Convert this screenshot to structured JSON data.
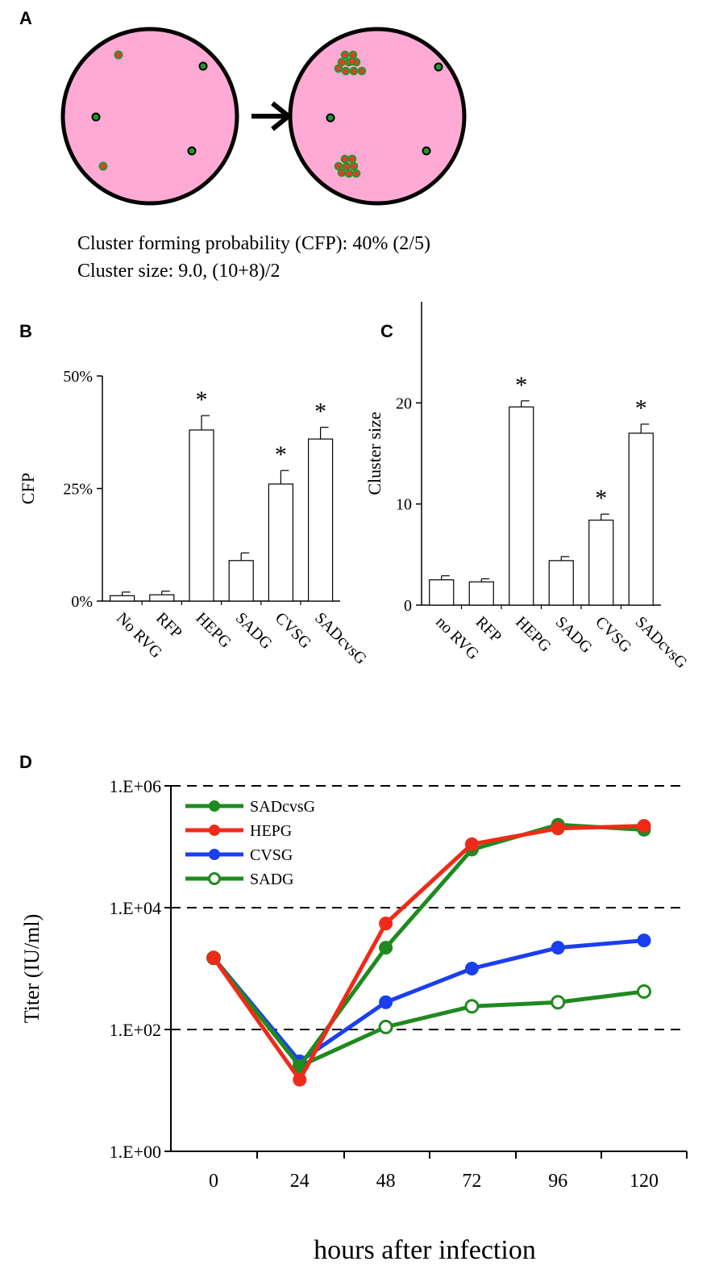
{
  "panel_a": {
    "letter": "A",
    "caption_line1": "Cluster forming probability (CFP): 40% (2/5)",
    "caption_line2": "Cluster size: 9.0, (10+8)/2",
    "colors": {
      "dish": "#ffaad4",
      "infected": "#e83a2a",
      "cell": "#1f9a2a"
    }
  },
  "chart_data": [
    {
      "panel": "B",
      "type": "bar",
      "title": "",
      "xlabel": "",
      "ylabel": "CFP",
      "ylim": [
        0,
        50
      ],
      "yticks": [
        0,
        25,
        50
      ],
      "ytick_labels": [
        "0%",
        "25%",
        "50%"
      ],
      "categories": [
        "No RVG",
        "RFP",
        "HEPG",
        "SADG",
        "CVSG",
        "SADcvsG"
      ],
      "values": [
        1.2,
        1.4,
        38,
        9,
        26,
        36
      ],
      "errors": [
        0.8,
        0.8,
        3.2,
        1.7,
        3.0,
        2.6
      ],
      "significance": [
        "",
        "",
        "*",
        "",
        "*",
        "*"
      ]
    },
    {
      "panel": "C",
      "type": "bar",
      "title": "",
      "xlabel": "",
      "ylabel": "Cluster size",
      "ylim": [
        0,
        30
      ],
      "yticks": [
        0,
        10,
        20
      ],
      "ytick_labels": [
        "0",
        "10",
        "20"
      ],
      "categories": [
        "no RVG",
        "RFP",
        "HEPG",
        "SADG",
        "CVSG",
        "SADcvsG"
      ],
      "values": [
        2.5,
        2.3,
        19.6,
        4.4,
        8.4,
        17.0
      ],
      "errors": [
        0.4,
        0.3,
        0.6,
        0.4,
        0.6,
        0.9
      ],
      "significance": [
        "",
        "",
        "*",
        "",
        "*",
        "*"
      ]
    },
    {
      "panel": "D",
      "type": "line",
      "title": "",
      "xlabel": "hours after infection",
      "ylabel": "Titer (IU/ml)",
      "yscale": "log",
      "ylim": [
        1,
        1000000
      ],
      "yticks": [
        1,
        100,
        10000,
        1000000
      ],
      "ytick_labels": [
        "1.E+00",
        "1.E+02",
        "1.E+04",
        "1.E+06"
      ],
      "x": [
        0,
        24,
        48,
        72,
        96,
        120
      ],
      "xtick_labels": [
        "0",
        "24",
        "48",
        "72",
        "96",
        "120"
      ],
      "legend_position": "top-left",
      "series": [
        {
          "name": "SADcvsG",
          "color": "#1f8a1f",
          "marker": "filled",
          "values": [
            1500,
            25,
            2200,
            90000,
            230000,
            190000
          ]
        },
        {
          "name": "HEPG",
          "color": "#f02a18",
          "marker": "filled",
          "values": [
            1500,
            15,
            5500,
            110000,
            200000,
            220000
          ]
        },
        {
          "name": "CVSG",
          "color": "#1a3ff0",
          "marker": "filled",
          "values": [
            1500,
            30,
            280,
            1000,
            2200,
            2900
          ]
        },
        {
          "name": "SADG",
          "color": "#1f8a1f",
          "marker": "open",
          "values": [
            1500,
            25,
            110,
            240,
            280,
            420
          ]
        }
      ]
    }
  ]
}
